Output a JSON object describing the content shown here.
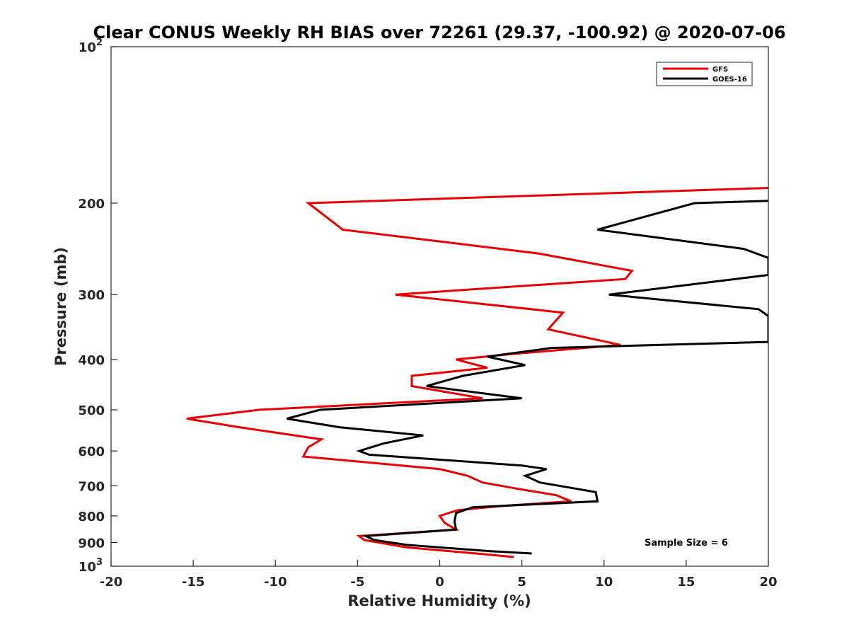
{
  "chart_data": {
    "type": "line",
    "title": "Clear CONUS Weekly RH BIAS over 72261 (29.37, -100.92) @ 2020-07-06",
    "xlabel": "Relative Humidity (%)",
    "ylabel": "Pressure (mb)",
    "xlim": [
      -20,
      20
    ],
    "ylim": [
      100,
      1000
    ],
    "y_scale": "log",
    "y_reversed": true,
    "x_ticks": [
      "-20",
      "-15",
      "-10",
      "-5",
      "0",
      "5",
      "10",
      "15",
      "20"
    ],
    "y_ticks": [
      {
        "value": 100,
        "base": "10",
        "exp": "2"
      },
      {
        "value": 200,
        "label": "200"
      },
      {
        "value": 300,
        "label": "300"
      },
      {
        "value": 400,
        "label": "400"
      },
      {
        "value": 500,
        "label": "500"
      },
      {
        "value": 600,
        "label": "600"
      },
      {
        "value": 700,
        "label": "700"
      },
      {
        "value": 800,
        "label": "800"
      },
      {
        "value": 900,
        "label": "900"
      },
      {
        "value": 1000,
        "base": "10",
        "exp": "3"
      }
    ],
    "grid": false,
    "legend_position": "top-right",
    "series": [
      {
        "name": "GFS",
        "color": "#e60000",
        "points": [
          [
            20,
            187
          ],
          [
            -8,
            200
          ],
          [
            -5.9,
            225
          ],
          [
            6,
            250
          ],
          [
            11.7,
            270
          ],
          [
            11.3,
            280
          ],
          [
            -2.7,
            300
          ],
          [
            7.5,
            325
          ],
          [
            6.6,
            350
          ],
          [
            11,
            375
          ],
          [
            4.6,
            390
          ],
          [
            1,
            400
          ],
          [
            2.9,
            415
          ],
          [
            -1.7,
            430
          ],
          [
            -1.7,
            450
          ],
          [
            2.6,
            475
          ],
          [
            -11,
            500
          ],
          [
            -15.4,
            520
          ],
          [
            -12.2,
            540
          ],
          [
            -7.2,
            570
          ],
          [
            -8,
            590
          ],
          [
            -8.3,
            615
          ],
          [
            0,
            650
          ],
          [
            1.7,
            670
          ],
          [
            2.6,
            690
          ],
          [
            4.8,
            710
          ],
          [
            7.1,
            730
          ],
          [
            8,
            750
          ],
          [
            3.9,
            765
          ],
          [
            1.1,
            780
          ],
          [
            0,
            800
          ],
          [
            0.3,
            825
          ],
          [
            1,
            850
          ],
          [
            -4.9,
            875
          ],
          [
            -4.6,
            890
          ],
          [
            -2,
            920
          ],
          [
            3,
            950
          ],
          [
            4.5,
            960
          ]
        ]
      },
      {
        "name": "GOES-16",
        "color": "#000000",
        "points": [
          [
            20,
            198
          ],
          [
            15.5,
            200
          ],
          [
            9.6,
            225
          ],
          [
            18.5,
            245
          ],
          [
            20,
            255
          ],
          [
            20,
            275
          ],
          [
            10.3,
            300
          ],
          [
            19.4,
            320
          ],
          [
            20,
            330
          ],
          [
            20,
            370
          ],
          [
            6.8,
            380
          ],
          [
            2.9,
            395
          ],
          [
            5.2,
            410
          ],
          [
            1.4,
            430
          ],
          [
            -0.8,
            450
          ],
          [
            5,
            475
          ],
          [
            -7.3,
            500
          ],
          [
            -9.3,
            520
          ],
          [
            -6.1,
            540
          ],
          [
            -1,
            560
          ],
          [
            -3.4,
            580
          ],
          [
            -4.9,
            600
          ],
          [
            -4.3,
            610
          ],
          [
            5,
            640
          ],
          [
            6.5,
            650
          ],
          [
            5.2,
            670
          ],
          [
            6.1,
            690
          ],
          [
            9.5,
            720
          ],
          [
            9.6,
            750
          ],
          [
            2,
            770
          ],
          [
            1,
            790
          ],
          [
            0.9,
            820
          ],
          [
            1,
            850
          ],
          [
            -4.5,
            875
          ],
          [
            -4,
            890
          ],
          [
            -2,
            910
          ],
          [
            3,
            935
          ],
          [
            5.6,
            945
          ]
        ]
      }
    ],
    "annotation": "Sample Size = 6"
  }
}
